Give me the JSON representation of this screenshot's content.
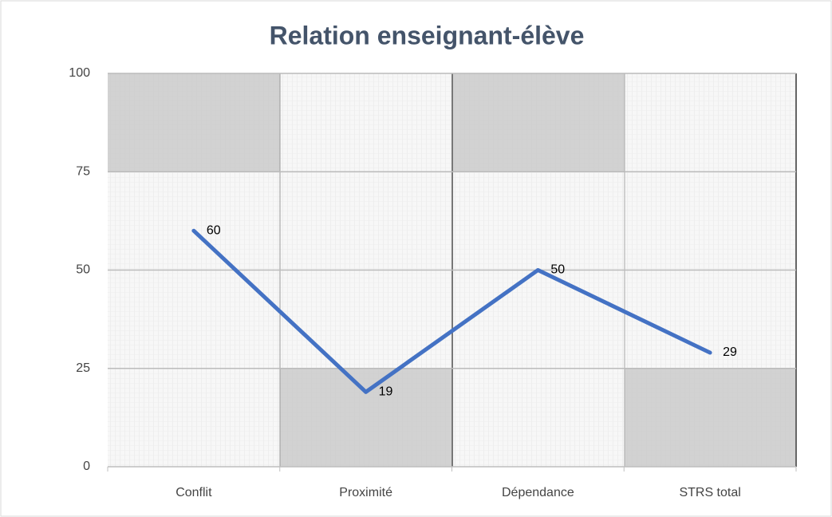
{
  "chart_data": {
    "type": "line",
    "title": "Relation enseignant-élève",
    "categories": [
      "Conflit",
      "Proximité",
      "Dépendance",
      "STRS total"
    ],
    "values": [
      60,
      19,
      50,
      29
    ],
    "color": "#4472c4",
    "ylim": [
      0,
      100
    ],
    "yticks": [
      0,
      25,
      50,
      75,
      100
    ],
    "grid": true
  }
}
